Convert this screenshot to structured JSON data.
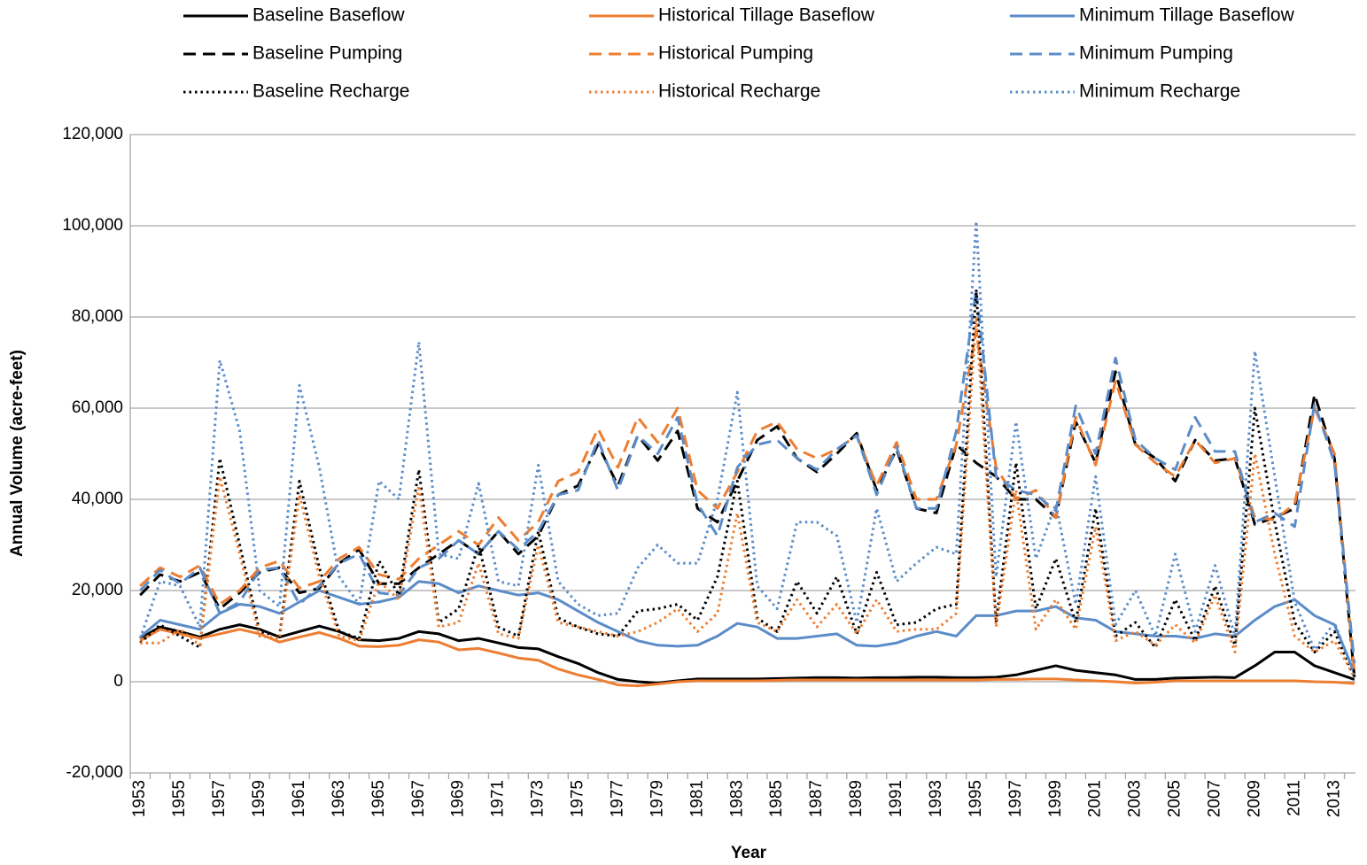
{
  "chart_data": {
    "type": "line",
    "x_label": "Year",
    "y_label": "Annual Volume (acre-feet)",
    "categories": [
      "1953",
      null,
      "1955",
      null,
      "1957",
      null,
      "1959",
      null,
      "1961",
      null,
      "1963",
      null,
      "1965",
      null,
      "1967",
      null,
      "1969",
      null,
      "1971",
      null,
      "1973",
      null,
      "1975",
      null,
      "1977",
      null,
      "1979",
      null,
      "1981",
      null,
      "1983",
      null,
      "1985",
      null,
      "1987",
      null,
      "1989",
      null,
      "1991",
      null,
      "1993",
      null,
      "1995",
      null,
      "1997",
      null,
      "1999",
      null,
      "2001",
      null,
      "2003",
      null,
      "2005",
      null,
      "2007",
      null,
      "2009",
      null,
      "2011",
      null,
      "2013",
      null
    ],
    "ylim": [
      -20000,
      120000
    ],
    "yticks": [
      {
        "value": -20000,
        "label": "-20,000"
      },
      0,
      {
        "value": 20000,
        "label": "20,000"
      },
      {
        "value": 40000,
        "label": "40,000"
      },
      {
        "value": 60000,
        "label": "60,000"
      },
      {
        "value": 80000,
        "label": "80,000"
      },
      {
        "value": 100000,
        "label": "100,000"
      },
      {
        "value": 120000,
        "label": "120,000"
      }
    ],
    "grid": true,
    "legend": "top",
    "series": [
      {
        "name": "Baseline Baseflow",
        "color": "#000000",
        "dash": "solid",
        "values": [
          9500,
          12000,
          11000,
          9800,
          11500,
          12500,
          11500,
          9800,
          11000,
          12200,
          11000,
          9200,
          9000,
          9500,
          11000,
          10500,
          9000,
          9500,
          8500,
          7500,
          7200,
          5500,
          4000,
          2000,
          500,
          0,
          -300,
          200,
          600,
          600,
          600,
          600,
          700,
          800,
          900,
          900,
          800,
          900,
          900,
          1000,
          1000,
          900,
          900,
          1000,
          1500,
          2500,
          3500,
          2500,
          2000,
          1500,
          500,
          500,
          800,
          900,
          1000,
          900,
          3500,
          6500,
          6500,
          3500,
          2000,
          500
        ]
      },
      {
        "name": "Historical Tillage Baseflow",
        "color": "#ED7D31",
        "dash": "solid",
        "values": [
          9000,
          11500,
          10500,
          9500,
          10500,
          11500,
          10500,
          8700,
          9800,
          10800,
          9500,
          7800,
          7700,
          8000,
          9200,
          8700,
          7000,
          7300,
          6300,
          5200,
          4700,
          2800,
          1500,
          500,
          -700,
          -900,
          -500,
          0,
          200,
          200,
          200,
          200,
          300,
          400,
          400,
          400,
          400,
          400,
          400,
          400,
          400,
          400,
          400,
          500,
          500,
          600,
          600,
          400,
          200,
          0,
          -300,
          -100,
          200,
          200,
          200,
          200,
          200,
          200,
          200,
          0,
          -100,
          -400
        ]
      },
      {
        "name": "Minimum Tillage Baseflow",
        "color": "#5B8CC8",
        "dash": "solid",
        "values": [
          9800,
          13500,
          12500,
          11500,
          15000,
          17000,
          16500,
          15000,
          17500,
          20000,
          18500,
          17000,
          17500,
          18500,
          22000,
          21500,
          19500,
          21000,
          20000,
          19000,
          19500,
          18000,
          15500,
          13000,
          11000,
          9000,
          8000,
          7800,
          8000,
          10000,
          12800,
          12000,
          9500,
          9500,
          10000,
          10500,
          8000,
          7800,
          8500,
          10000,
          11000,
          10000,
          14500,
          14500,
          15500,
          15500,
          16500,
          14000,
          13500,
          11000,
          10500,
          10000,
          10000,
          9500,
          10500,
          10000,
          13500,
          16500,
          18000,
          14500,
          12500,
          2000
        ]
      },
      {
        "name": "Baseline Pumping",
        "color": "#000000",
        "dash": "dashed",
        "values": [
          19000,
          23500,
          22000,
          24000,
          16000,
          19500,
          24000,
          25000,
          19500,
          20500,
          26000,
          29000,
          21500,
          21500,
          25000,
          28000,
          31000,
          28000,
          33000,
          28000,
          32000,
          41000,
          43000,
          52000,
          43000,
          54000,
          48500,
          55000,
          38000,
          35000,
          44000,
          53000,
          56000,
          49000,
          46000,
          50000,
          54500,
          42000,
          51000,
          38000,
          37000,
          52000,
          48000,
          45000,
          40000,
          40000,
          36000,
          57000,
          48000,
          68000,
          52000,
          49000,
          44000,
          53000,
          48500,
          49000,
          34500,
          36000,
          38000,
          63000,
          49000,
          1000
        ]
      },
      {
        "name": "Historical Pumping",
        "color": "#ED7D31",
        "dash": "dashed",
        "values": [
          21000,
          25000,
          23000,
          25500,
          17000,
          20000,
          25000,
          26500,
          20500,
          22000,
          27000,
          29500,
          23500,
          22500,
          27000,
          30000,
          33000,
          30000,
          36000,
          31000,
          35000,
          44000,
          46000,
          55500,
          47000,
          58000,
          52500,
          60000,
          42000,
          38000,
          46000,
          55000,
          57000,
          51000,
          49000,
          51000,
          54000,
          43000,
          52500,
          40000,
          40000,
          52000,
          77000,
          47000,
          40000,
          42000,
          36000,
          58000,
          47500,
          66000,
          52000,
          48000,
          45000,
          53000,
          48000,
          49000,
          36000,
          35500,
          39000,
          60000,
          50000,
          2000
        ]
      },
      {
        "name": "Minimum Pumping",
        "color": "#5B8CC8",
        "dash": "dashed",
        "values": [
          20000,
          24500,
          21500,
          25000,
          15000,
          17500,
          24500,
          25000,
          17000,
          21000,
          26000,
          28000,
          19500,
          19000,
          25000,
          27000,
          31000,
          28000,
          33000,
          29000,
          33000,
          41000,
          42000,
          53000,
          42000,
          54000,
          50000,
          58000,
          39000,
          32000,
          47000,
          52000,
          53000,
          49000,
          46500,
          51000,
          54000,
          41000,
          51500,
          38000,
          38000,
          55000,
          86000,
          45000,
          42000,
          41000,
          37500,
          60500,
          50000,
          71000,
          53000,
          49000,
          46500,
          58000,
          50500,
          50500,
          35000,
          37000,
          34000,
          61000,
          48000,
          4000
        ]
      },
      {
        "name": "Baseline Recharge",
        "color": "#000000",
        "dash": "dotted",
        "values": [
          8500,
          12500,
          10000,
          7500,
          49000,
          30000,
          11000,
          10000,
          44000,
          25000,
          11000,
          9500,
          26500,
          19000,
          46500,
          13000,
          16000,
          30000,
          12000,
          10000,
          33000,
          14000,
          12000,
          10500,
          10000,
          15500,
          16000,
          17000,
          13500,
          23000,
          44000,
          14000,
          11000,
          22000,
          15000,
          23000,
          10500,
          24000,
          12500,
          13000,
          16000,
          17000,
          86000,
          13000,
          48000,
          16000,
          27000,
          13000,
          38000,
          10000,
          13000,
          7500,
          18000,
          9000,
          21000,
          8000,
          60000,
          35000,
          13000,
          6500,
          11000,
          1000
        ]
      },
      {
        "name": "Historical Recharge",
        "color": "#ED7D31",
        "dash": "dotted",
        "values": [
          8500,
          8500,
          11500,
          8000,
          45000,
          28000,
          10000,
          9500,
          41000,
          23000,
          10000,
          9000,
          22000,
          18000,
          43000,
          12000,
          13000,
          26000,
          10500,
          9500,
          30000,
          13000,
          12000,
          11000,
          10000,
          11000,
          13000,
          16000,
          11000,
          15000,
          37000,
          13000,
          11000,
          18000,
          12000,
          17000,
          10500,
          18000,
          11000,
          11500,
          11500,
          15000,
          80000,
          12000,
          42000,
          11500,
          18000,
          11500,
          34000,
          9000,
          11000,
          8000,
          12500,
          8500,
          19000,
          6500,
          50000,
          28000,
          10000,
          6500,
          9000,
          1000
        ]
      },
      {
        "name": "Minimum Recharge",
        "color": "#5B8CC8",
        "dash": "dotted",
        "values": [
          9500,
          22000,
          21000,
          12000,
          70500,
          55000,
          20000,
          16500,
          65000,
          47000,
          23000,
          17000,
          44000,
          40000,
          74500,
          28000,
          27000,
          43500,
          22000,
          21000,
          47500,
          22000,
          17000,
          14500,
          15000,
          25000,
          30000,
          26000,
          26000,
          40000,
          63500,
          21000,
          16000,
          35000,
          35000,
          32000,
          13000,
          38000,
          22000,
          26000,
          29500,
          28000,
          101000,
          23000,
          57000,
          27000,
          39000,
          17000,
          45000,
          12500,
          20000,
          10000,
          28000,
          11000,
          25500,
          10000,
          72500,
          45000,
          17500,
          7000,
          13000,
          1500
        ]
      }
    ]
  }
}
